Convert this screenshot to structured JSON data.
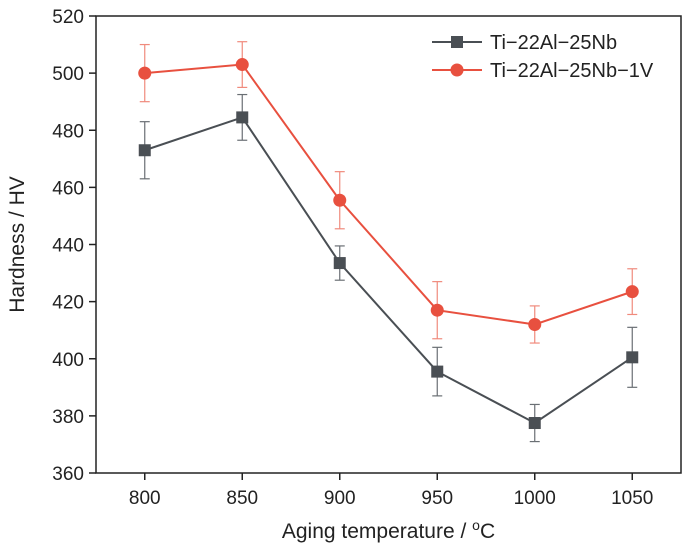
{
  "chart_data": {
    "type": "line",
    "x": [
      800,
      850,
      900,
      950,
      1000,
      1050
    ],
    "xlim": [
      775,
      1075
    ],
    "ylim": [
      360,
      520
    ],
    "xticks": [
      "800",
      "850",
      "900",
      "950",
      "1000",
      "1050"
    ],
    "yticks": [
      "360",
      "380",
      "400",
      "420",
      "440",
      "460",
      "480",
      "500",
      "520"
    ],
    "xlabel": "Aging temperature / ",
    "xlabel_sup": "o",
    "xlabel_unit": "C",
    "ylabel": "Hardness / HV",
    "grid": false,
    "legend_position": "top-right",
    "series": [
      {
        "name": "Ti−22Al−25Nb",
        "marker": "square",
        "color": "#4a4f54",
        "values": [
          473,
          484.5,
          433.5,
          395.5,
          377.5,
          400.5
        ],
        "errors": [
          10,
          8,
          6,
          8.5,
          6.5,
          10.5
        ]
      },
      {
        "name": "Ti−22Al−25Nb−1V",
        "marker": "circle",
        "color": "#e8503f",
        "values": [
          500,
          503,
          455.5,
          417,
          412,
          423.5
        ],
        "errors": [
          10,
          8,
          10,
          10,
          6.5,
          8
        ]
      }
    ]
  }
}
